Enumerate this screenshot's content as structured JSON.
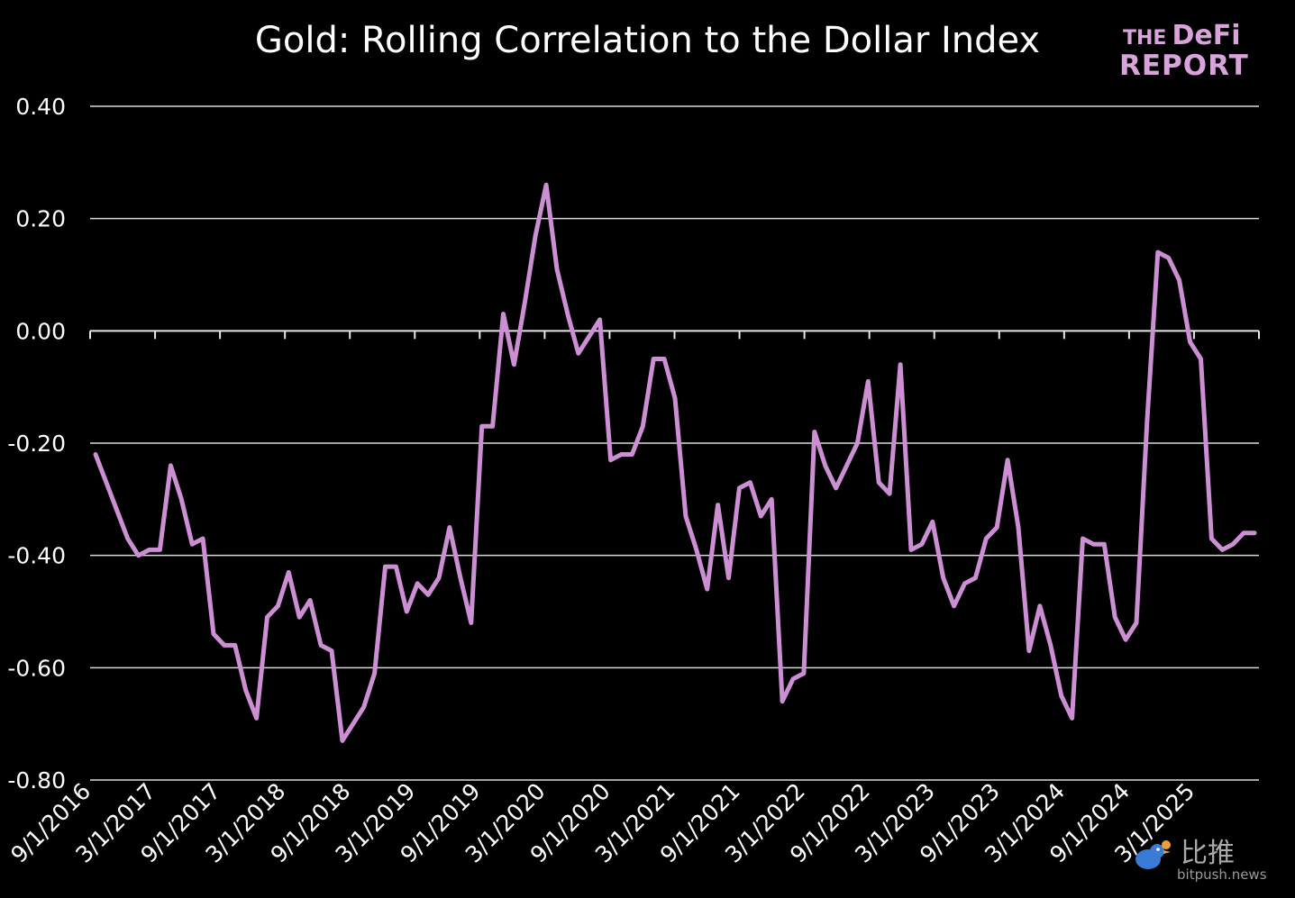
{
  "chart_data": {
    "type": "line",
    "title": "Gold: Rolling Correlation to the Dollar Index",
    "ylim": [
      -0.8,
      0.4
    ],
    "yticks": [
      "0.40",
      "0.20",
      "0.00",
      "-0.20",
      "-0.40",
      "-0.60",
      "-0.80"
    ],
    "ytick_values": [
      0.4,
      0.2,
      0.0,
      -0.2,
      -0.4,
      -0.6,
      -0.8
    ],
    "xticks": [
      "9/1/2016",
      "3/1/2017",
      "9/1/2017",
      "3/1/2018",
      "9/1/2018",
      "3/1/2019",
      "9/1/2019",
      "3/1/2020",
      "9/1/2020",
      "3/1/2021",
      "9/1/2021",
      "3/1/2022",
      "9/1/2022",
      "3/1/2023",
      "9/1/2023",
      "3/1/2024",
      "9/1/2024",
      "3/1/2025"
    ],
    "grid": true,
    "line_color": "#cc8fd3",
    "series": [
      {
        "values": [
          -0.22,
          -0.27,
          -0.32,
          -0.37,
          -0.4,
          -0.39,
          -0.39,
          -0.24,
          -0.3,
          -0.38,
          -0.37,
          -0.54,
          -0.56,
          -0.56,
          -0.64,
          -0.69,
          -0.51,
          -0.49,
          -0.43,
          -0.51,
          -0.48,
          -0.56,
          -0.57,
          -0.73,
          -0.7,
          -0.67,
          -0.61,
          -0.42,
          -0.42,
          -0.5,
          -0.45,
          -0.47,
          -0.44,
          -0.35,
          -0.44,
          -0.52,
          -0.17,
          -0.17,
          0.03,
          -0.06,
          0.05,
          0.17,
          0.26,
          0.11,
          0.03,
          -0.04,
          -0.01,
          0.02,
          -0.23,
          -0.22,
          -0.22,
          -0.17,
          -0.05,
          -0.05,
          -0.12,
          -0.33,
          -0.39,
          -0.46,
          -0.31,
          -0.44,
          -0.28,
          -0.27,
          -0.33,
          -0.3,
          -0.66,
          -0.62,
          -0.61,
          -0.18,
          -0.24,
          -0.28,
          -0.24,
          -0.2,
          -0.09,
          -0.27,
          -0.29,
          -0.06,
          -0.39,
          -0.38,
          -0.34,
          -0.44,
          -0.49,
          -0.45,
          -0.44,
          -0.37,
          -0.35,
          -0.23,
          -0.35,
          -0.57,
          -0.49,
          -0.56,
          -0.65,
          -0.69,
          -0.37,
          -0.38,
          -0.38,
          -0.51,
          -0.55,
          -0.52,
          -0.16,
          0.14,
          0.13,
          0.09,
          -0.02,
          -0.05,
          -0.37,
          -0.39,
          -0.38,
          -0.36,
          -0.36
        ]
      }
    ]
  },
  "logo": {
    "line1_a": "THE",
    "line1_b": "DeFi",
    "line2": "REPORT"
  },
  "watermark": {
    "main": "比推",
    "sub": "bitpush.news"
  }
}
